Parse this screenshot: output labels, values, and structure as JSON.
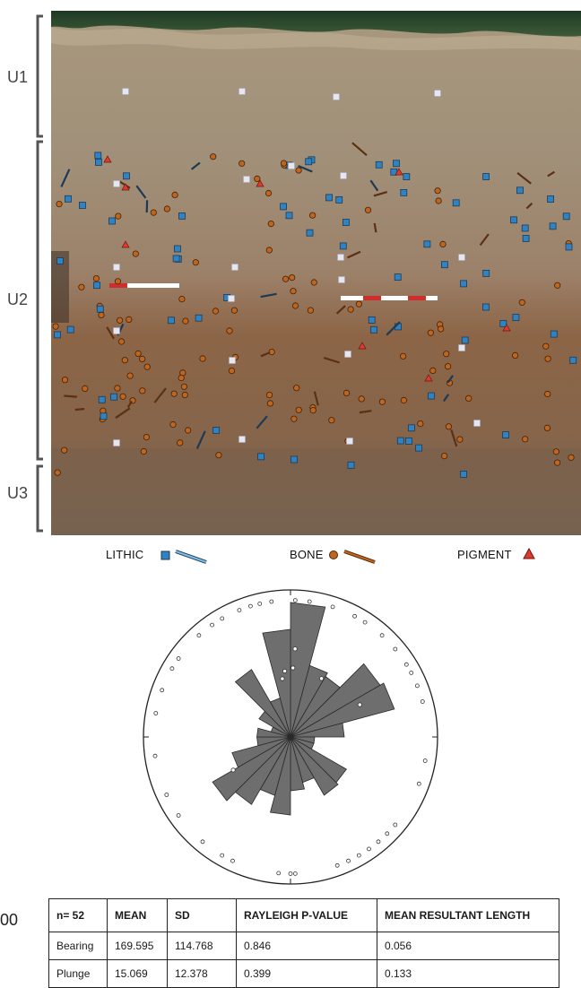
{
  "units": [
    "U1",
    "U2",
    "U3"
  ],
  "legend": {
    "lithic": "LITHIC",
    "bone": "BONE",
    "pigment": "PIGMENT"
  },
  "colors": {
    "lithic": "#2f83c2",
    "bone": "#c0651d",
    "pigment": "#e03a2e",
    "rose_petal": "#6e6e6e"
  },
  "stray_label": "00",
  "stats_table": {
    "headers": [
      "n= 52",
      "MEAN",
      "SD",
      "RAYLEIGH P-VALUE",
      "MEAN RESULTANT LENGTH"
    ],
    "rows": [
      [
        "Bearing",
        "169.595",
        "114.768",
        "0.846",
        "0.056"
      ],
      [
        "Plunge",
        "15.069",
        "12.378",
        "0.399",
        "0.133"
      ]
    ]
  },
  "chart_data": {
    "type": "rose",
    "n": 52,
    "bin_width_deg": 15,
    "bins_start_deg": [
      0,
      15,
      30,
      45,
      60,
      75,
      90,
      105,
      120,
      135,
      150,
      165,
      180,
      195,
      210,
      225,
      240,
      255,
      270,
      285,
      300,
      315,
      330,
      345
    ],
    "bin_length_fraction": [
      1.0,
      0.55,
      0.52,
      0.77,
      0.8,
      0.4,
      0.18,
      0.18,
      0.48,
      0.5,
      0.35,
      0.4,
      0.58,
      0.45,
      0.58,
      0.67,
      0.45,
      0.25,
      0.25,
      0.15,
      0.27,
      0.58,
      0.3,
      0.8
    ],
    "outer_points_bearing_deg": [
      2,
      8,
      18,
      28,
      33,
      42,
      50,
      58,
      62,
      68,
      75,
      100,
      110,
      130,
      135,
      140,
      145,
      150,
      155,
      160,
      178,
      180,
      185,
      205,
      210,
      220,
      235,
      245,
      262,
      280,
      290,
      300,
      305,
      318,
      325,
      330,
      338,
      343,
      347,
      352
    ],
    "inner_points": [
      {
        "bearing_deg": 3,
        "r_fraction": 0.6
      },
      {
        "bearing_deg": 2,
        "r_fraction": 0.47
      },
      {
        "bearing_deg": 352,
        "r_fraction": 0.4
      },
      {
        "bearing_deg": 28,
        "r_fraction": 0.45
      },
      {
        "bearing_deg": 65,
        "r_fraction": 0.52
      },
      {
        "bearing_deg": 240,
        "r_fraction": 0.45
      },
      {
        "bearing_deg": 355,
        "r_fraction": 0.45
      }
    ]
  }
}
